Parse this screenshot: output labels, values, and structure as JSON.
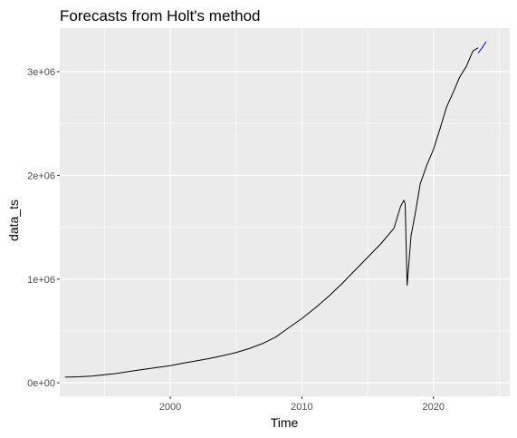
{
  "chart_data": {
    "type": "line",
    "title": "Forecasts from Holt's method",
    "xlabel": "Time",
    "ylabel": "data_ts",
    "xlim": [
      1991.6,
      2025.8
    ],
    "ylim": [
      -130000,
      3420000
    ],
    "x_ticks": [
      2000,
      2010,
      2020
    ],
    "x_tick_labels": [
      "2000",
      "2010",
      "2020"
    ],
    "y_ticks": [
      0,
      1000000,
      2000000,
      3000000
    ],
    "y_tick_labels": [
      "0e+00",
      "1e+06",
      "2e+06",
      "3e+06"
    ],
    "grid": true,
    "panel_background": "#EBEBEB",
    "grid_color": "#FFFFFF",
    "series": [
      {
        "color": "#000000",
        "x": [
          1992.0,
          1993.0,
          1994.0,
          1995.0,
          1996.0,
          1997.0,
          1998.0,
          1999.0,
          2000.0,
          2001.0,
          2002.0,
          2003.0,
          2004.0,
          2005.0,
          2006.0,
          2007.0,
          2008.0,
          2009.0,
          2010.0,
          2011.0,
          2012.0,
          2013.0,
          2014.0,
          2015.0,
          2016.0,
          2017.0,
          2017.5,
          2017.75,
          2017.85,
          2018.0,
          2018.3,
          2018.6,
          2019.0,
          2019.5,
          2020.0,
          2020.5,
          2021.0,
          2021.5,
          2022.0,
          2022.5,
          2023.0,
          2023.4
        ],
        "values": [
          55000,
          58000,
          65000,
          78000,
          92000,
          112000,
          130000,
          148000,
          165000,
          190000,
          212000,
          235000,
          262000,
          292000,
          330000,
          378000,
          440000,
          530000,
          620000,
          720000,
          830000,
          950000,
          1080000,
          1210000,
          1340000,
          1490000,
          1700000,
          1760000,
          1730000,
          940000,
          1420000,
          1620000,
          1920000,
          2100000,
          2250000,
          2450000,
          2660000,
          2800000,
          2950000,
          3050000,
          3200000,
          3230000
        ]
      },
      {
        "color": "#0000FF",
        "x": [
          2023.4,
          2023.7,
          2024.0
        ],
        "values": [
          3180000,
          3230000,
          3290000
        ]
      }
    ]
  }
}
